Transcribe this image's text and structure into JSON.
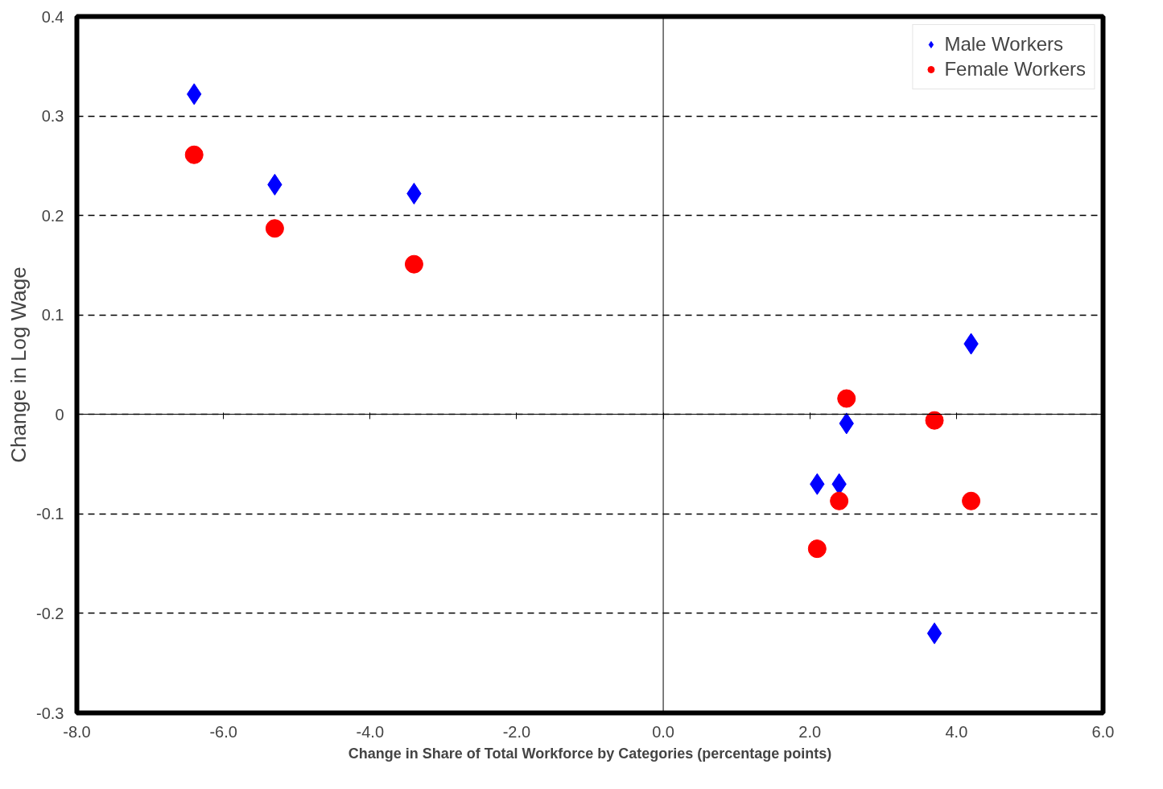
{
  "chart_data": {
    "type": "scatter",
    "xlabel": "Change in Share of Total Workforce by Categories (percentage points)",
    "ylabel": "Change in Log Wage",
    "xlim": [
      -8,
      6
    ],
    "ylim": [
      -0.3,
      0.4
    ],
    "xticks": [
      {
        "value": -8,
        "label": "-8.0"
      },
      {
        "value": -6,
        "label": "-6.0"
      },
      {
        "value": -4,
        "label": "-4.0"
      },
      {
        "value": -2,
        "label": "-2.0"
      },
      {
        "value": 0,
        "label": "0.0"
      },
      {
        "value": 2,
        "label": "2.0"
      },
      {
        "value": 4,
        "label": "4.0"
      },
      {
        "value": 6,
        "label": "6.0"
      }
    ],
    "yticks": [
      -0.3,
      -0.2,
      -0.1,
      0,
      0.1,
      0.2,
      0.3,
      0.4
    ],
    "grid": "y",
    "legend": "top right",
    "ref_lines": [
      {
        "axis": "x",
        "value": 0,
        "color": "#000000",
        "line_style": "solid"
      }
    ],
    "series": [
      {
        "name": "Male Workers",
        "color": "#0000ff",
        "marker": "diamond",
        "x": [
          -6.4,
          -5.3,
          -3.4,
          2.5,
          2.1,
          2.4,
          3.7,
          4.2
        ],
        "values": [
          0.322,
          0.231,
          0.222,
          -0.009,
          -0.07,
          -0.07,
          -0.22,
          0.071
        ]
      },
      {
        "name": "Female Workers",
        "color": "#ff0000",
        "marker": "circle",
        "x": [
          -6.4,
          -5.3,
          -3.4,
          2.5,
          3.7,
          2.4,
          4.2,
          2.1
        ],
        "values": [
          0.261,
          0.187,
          0.151,
          0.016,
          -0.006,
          -0.087,
          -0.087,
          -0.135
        ]
      }
    ]
  }
}
